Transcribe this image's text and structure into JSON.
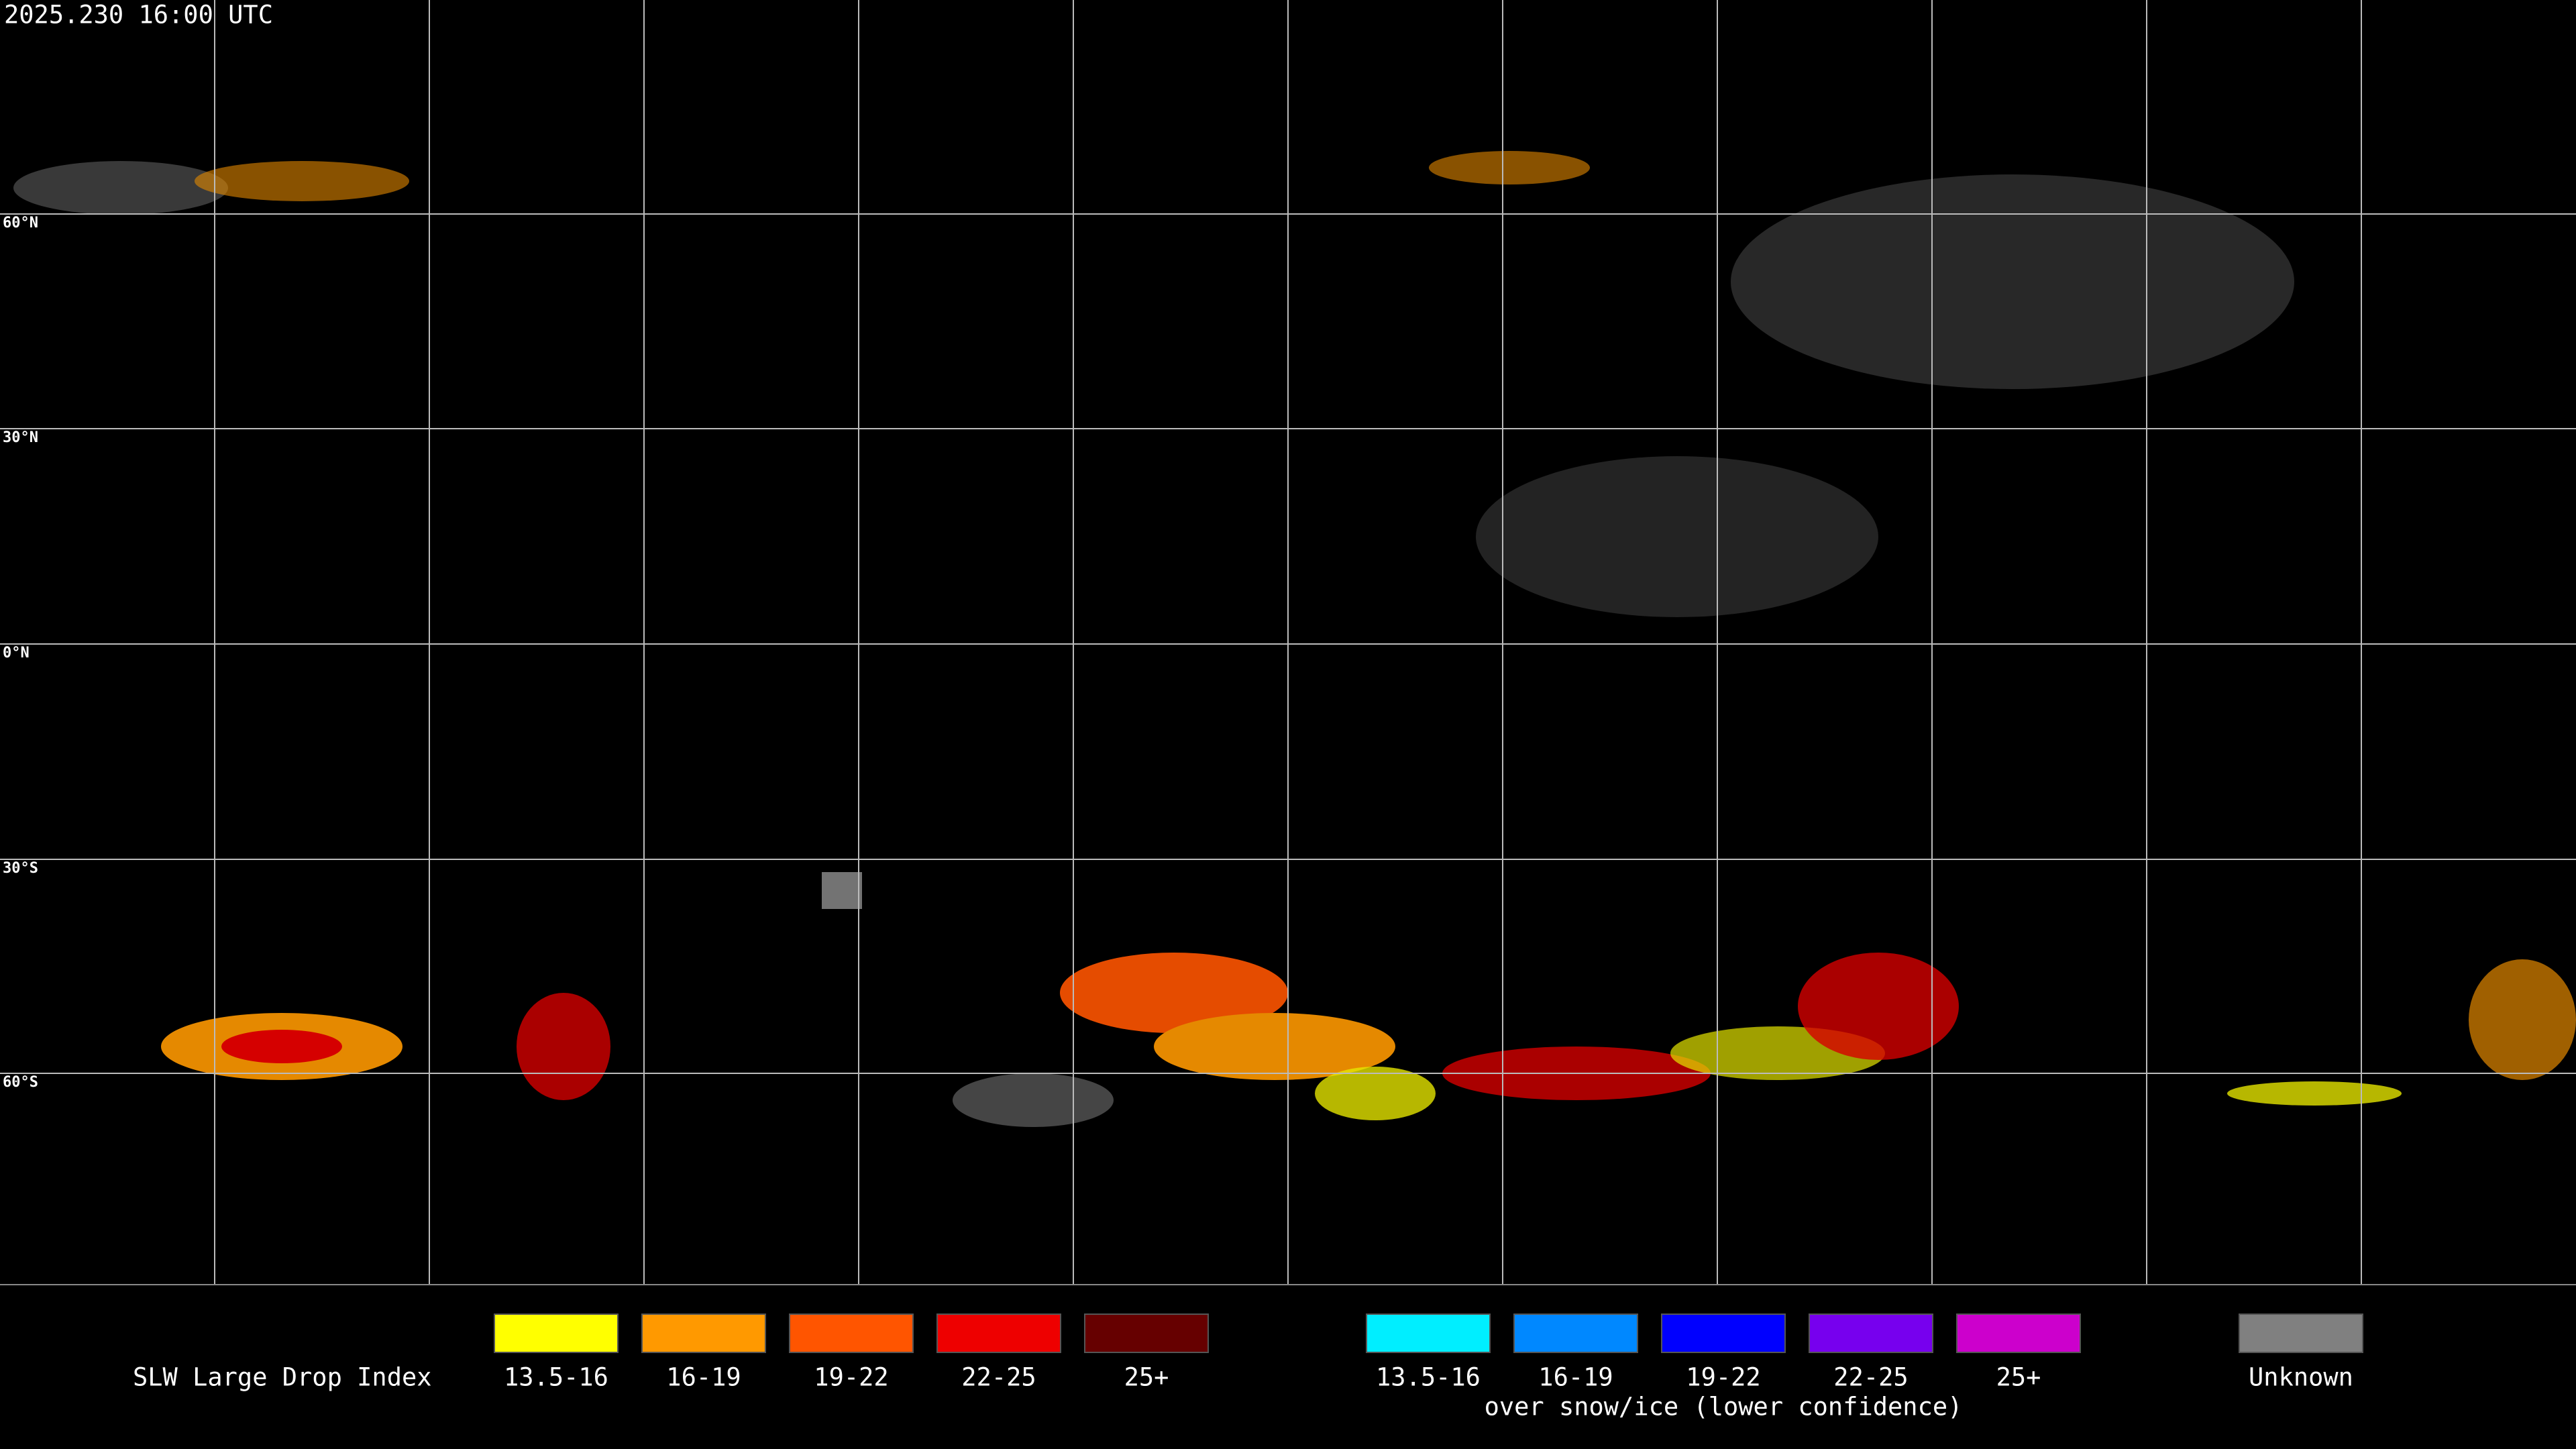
{
  "timestamp": "2025.230 16:00 UTC",
  "map": {
    "latitude_labels": [
      "60°N",
      "30°N",
      "0°N",
      "30°S",
      "60°S"
    ]
  },
  "legend": {
    "title": "SLW Large Drop Index",
    "groups": [
      {
        "items": [
          {
            "label": "13.5-16",
            "color": "#ffff00"
          },
          {
            "label": "16-19",
            "color": "#ff9900"
          },
          {
            "label": "19-22",
            "color": "#ff5500"
          },
          {
            "label": "22-25",
            "color": "#ee0000"
          },
          {
            "label": "25+",
            "color": "#660000"
          }
        ]
      },
      {
        "items": [
          {
            "label": "13.5-16",
            "color": "#00eeff"
          },
          {
            "label": "16-19",
            "color": "#0088ff"
          },
          {
            "label": "19-22",
            "color": "#0000ff"
          },
          {
            "label": "22-25",
            "color": "#7700ee"
          },
          {
            "label": "25+",
            "color": "#cc00cc"
          }
        ],
        "caption": "over snow/ice (lower confidence)"
      },
      {
        "items": [
          {
            "label": "Unknown",
            "color": "#808080"
          }
        ]
      }
    ]
  }
}
